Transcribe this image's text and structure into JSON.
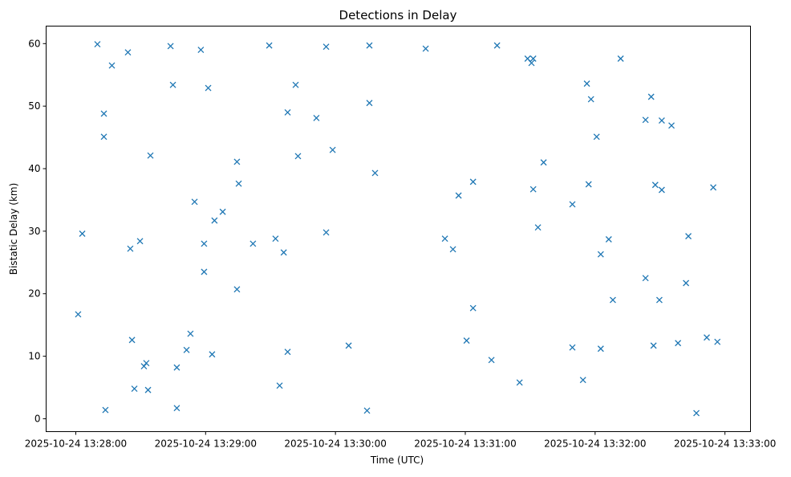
{
  "chart_data": {
    "type": "scatter",
    "title": "Detections in Delay",
    "xlabel": "Time (UTC)",
    "ylabel": "Bistatic Delay (km)",
    "marker": "x",
    "color": "#1f77b4",
    "grid": false,
    "xlim_seconds": [
      -13.7,
      311.8
    ],
    "ylim": [
      -2.06,
      62.8
    ],
    "x_ticks": [
      {
        "value": 0,
        "label": "2025-10-24 13:28:00"
      },
      {
        "value": 60,
        "label": "2025-10-24 13:29:00"
      },
      {
        "value": 120,
        "label": "2025-10-24 13:30:00"
      },
      {
        "value": 180,
        "label": "2025-10-24 13:31:00"
      },
      {
        "value": 240,
        "label": "2025-10-24 13:32:00"
      },
      {
        "value": 300,
        "label": "2025-10-24 13:33:00"
      }
    ],
    "y_ticks": [
      {
        "value": 0,
        "label": "0"
      },
      {
        "value": 10,
        "label": "10"
      },
      {
        "value": 20,
        "label": "20"
      },
      {
        "value": 30,
        "label": "30"
      },
      {
        "value": 40,
        "label": "40"
      },
      {
        "value": 50,
        "label": "50"
      },
      {
        "value": 60,
        "label": "60"
      }
    ],
    "points_seconds_after_132800_and_km": [
      [
        1.1,
        16.7
      ],
      [
        3.0,
        29.6
      ],
      [
        10.0,
        59.9
      ],
      [
        13.0,
        48.8
      ],
      [
        13.0,
        45.1
      ],
      [
        13.7,
        1.4
      ],
      [
        16.7,
        56.5
      ],
      [
        24.1,
        58.6
      ],
      [
        25.2,
        27.2
      ],
      [
        26.0,
        12.6
      ],
      [
        27.1,
        4.8
      ],
      [
        29.7,
        28.4
      ],
      [
        31.5,
        8.4
      ],
      [
        32.6,
        8.9
      ],
      [
        33.4,
        4.6
      ],
      [
        34.5,
        42.1
      ],
      [
        43.8,
        59.6
      ],
      [
        44.9,
        53.4
      ],
      [
        46.7,
        8.2
      ],
      [
        46.7,
        1.7
      ],
      [
        51.2,
        11.0
      ],
      [
        53.0,
        13.6
      ],
      [
        54.9,
        34.7
      ],
      [
        57.8,
        59.0
      ],
      [
        59.3,
        28.0
      ],
      [
        59.3,
        23.5
      ],
      [
        61.2,
        52.9
      ],
      [
        63.0,
        10.3
      ],
      [
        64.1,
        31.7
      ],
      [
        67.9,
        33.1
      ],
      [
        74.5,
        41.1
      ],
      [
        74.5,
        20.7
      ],
      [
        75.3,
        37.6
      ],
      [
        81.9,
        28.0
      ],
      [
        89.4,
        59.7
      ],
      [
        92.3,
        28.8
      ],
      [
        94.2,
        5.3
      ],
      [
        96.1,
        26.6
      ],
      [
        97.9,
        49.0
      ],
      [
        97.9,
        10.7
      ],
      [
        101.6,
        53.4
      ],
      [
        102.7,
        42.0
      ],
      [
        111.2,
        48.1
      ],
      [
        115.7,
        59.5
      ],
      [
        115.7,
        29.8
      ],
      [
        118.7,
        43.0
      ],
      [
        126.1,
        11.7
      ],
      [
        134.6,
        1.3
      ],
      [
        135.7,
        59.7
      ],
      [
        135.7,
        50.5
      ],
      [
        138.3,
        39.3
      ],
      [
        161.7,
        59.2
      ],
      [
        170.6,
        28.8
      ],
      [
        174.3,
        27.1
      ],
      [
        176.9,
        35.7
      ],
      [
        180.6,
        12.5
      ],
      [
        183.6,
        37.9
      ],
      [
        183.6,
        17.7
      ],
      [
        192.1,
        9.4
      ],
      [
        194.7,
        59.7
      ],
      [
        205.1,
        5.8
      ],
      [
        208.8,
        57.6
      ],
      [
        210.6,
        56.9
      ],
      [
        211.4,
        57.6
      ],
      [
        211.4,
        36.7
      ],
      [
        213.6,
        30.6
      ],
      [
        216.2,
        41.0
      ],
      [
        229.5,
        34.3
      ],
      [
        229.5,
        11.4
      ],
      [
        234.4,
        6.2
      ],
      [
        236.2,
        53.6
      ],
      [
        237.0,
        37.5
      ],
      [
        238.1,
        51.1
      ],
      [
        240.7,
        45.1
      ],
      [
        242.6,
        26.3
      ],
      [
        242.6,
        11.2
      ],
      [
        246.3,
        28.7
      ],
      [
        248.2,
        19.0
      ],
      [
        251.8,
        57.6
      ],
      [
        263.3,
        47.8
      ],
      [
        263.3,
        22.5
      ],
      [
        265.9,
        51.5
      ],
      [
        267.0,
        11.7
      ],
      [
        267.8,
        37.4
      ],
      [
        269.7,
        19.0
      ],
      [
        270.8,
        47.7
      ],
      [
        270.8,
        36.6
      ],
      [
        275.3,
        46.9
      ],
      [
        278.3,
        12.1
      ],
      [
        282.0,
        21.7
      ],
      [
        283.1,
        29.2
      ],
      [
        286.8,
        0.9
      ],
      [
        291.6,
        13.0
      ],
      [
        294.6,
        37.0
      ],
      [
        296.5,
        12.3
      ]
    ]
  }
}
